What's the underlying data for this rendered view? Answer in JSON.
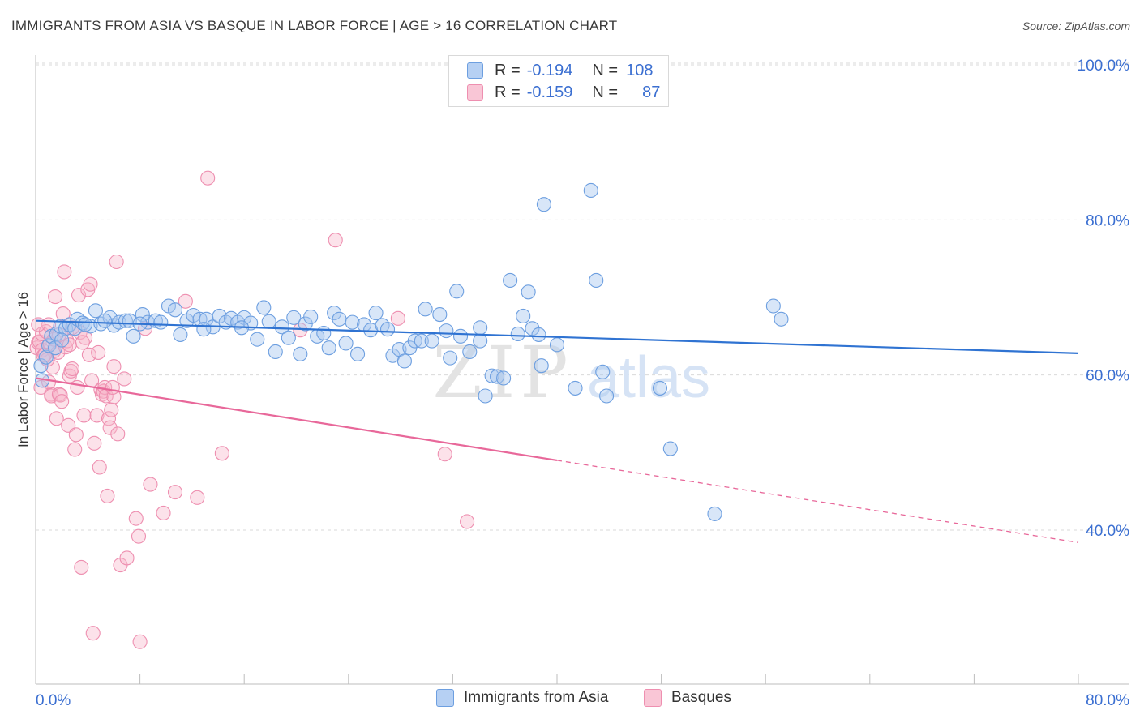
{
  "title": "IMMIGRANTS FROM ASIA VS BASQUE IN LABOR FORCE | AGE > 16 CORRELATION CHART",
  "source": "Source: ZipAtlas.com",
  "watermark": {
    "zip": "ZIP",
    "atlas": "atlas"
  },
  "legend": {
    "rows": [
      {
        "r_label": "R =",
        "r_value": "-0.194",
        "n_label": "N =",
        "n_value": "108"
      },
      {
        "r_label": "R =",
        "r_value": "-0.159",
        "n_label": "N =",
        "n_value": "87"
      }
    ]
  },
  "colors": {
    "asia_fill": "#a9c8f0",
    "asia_stroke": "#6d9fe0",
    "asia_line": "#2f73d2",
    "basque_fill": "#f7b7cb",
    "basque_stroke": "#ee8fb0",
    "basque_line": "#e8689a",
    "axis_label": "#3b6fd1",
    "grid": "#dadada"
  },
  "chart_data": {
    "type": "scatter",
    "title": "IMMIGRANTS FROM ASIA VS BASQUE IN LABOR FORCE | AGE > 16 CORRELATION CHART",
    "xlabel": "",
    "ylabel": "In Labor Force | Age > 16",
    "xlim": [
      0,
      80
    ],
    "ylim": [
      20,
      104
    ],
    "x_tick_labels": [
      "0.0%",
      "80.0%"
    ],
    "y_ticks": [
      40,
      60,
      80,
      100
    ],
    "y_tick_labels": [
      "40.0%",
      "60.0%",
      "80.0%",
      "100.0%"
    ],
    "grid": true,
    "legend_position": "top-center",
    "series": [
      {
        "name": "Immigrants from Asia",
        "r": -0.194,
        "n": 108,
        "trend": {
          "x": [
            0,
            80
          ],
          "y": [
            67.0,
            62.8
          ],
          "dashed_from": null
        },
        "points": [
          [
            0.4,
            61.2
          ],
          [
            0.5,
            59.3
          ],
          [
            0.8,
            62.3
          ],
          [
            1.0,
            63.8
          ],
          [
            1.2,
            65.0
          ],
          [
            1.6,
            65.3
          ],
          [
            1.9,
            66.3
          ],
          [
            2.3,
            66.0
          ],
          [
            2.6,
            66.5
          ],
          [
            3.0,
            66.0
          ],
          [
            3.2,
            67.2
          ],
          [
            3.6,
            66.7
          ],
          [
            4.2,
            66.3
          ],
          [
            4.6,
            68.3
          ],
          [
            5.0,
            66.6
          ],
          [
            5.7,
            67.4
          ],
          [
            6.0,
            66.4
          ],
          [
            6.4,
            66.8
          ],
          [
            6.9,
            67.0
          ],
          [
            7.2,
            67.0
          ],
          [
            7.5,
            65.0
          ],
          [
            8.2,
            67.8
          ],
          [
            8.6,
            66.8
          ],
          [
            9.2,
            67.0
          ],
          [
            9.6,
            66.8
          ],
          [
            10.2,
            68.9
          ],
          [
            10.7,
            68.4
          ],
          [
            11.1,
            65.2
          ],
          [
            11.6,
            67.0
          ],
          [
            12.1,
            67.7
          ],
          [
            12.6,
            67.2
          ],
          [
            13.1,
            67.2
          ],
          [
            13.6,
            66.2
          ],
          [
            14.1,
            67.6
          ],
          [
            14.6,
            66.8
          ],
          [
            15.0,
            67.3
          ],
          [
            15.5,
            66.8
          ],
          [
            16.0,
            67.4
          ],
          [
            16.5,
            66.7
          ],
          [
            17.0,
            64.6
          ],
          [
            17.5,
            68.7
          ],
          [
            17.9,
            66.9
          ],
          [
            18.4,
            63.0
          ],
          [
            18.9,
            66.2
          ],
          [
            19.4,
            64.8
          ],
          [
            19.8,
            67.4
          ],
          [
            20.3,
            62.7
          ],
          [
            20.7,
            66.6
          ],
          [
            21.1,
            67.5
          ],
          [
            21.6,
            65.0
          ],
          [
            22.1,
            65.4
          ],
          [
            22.5,
            63.5
          ],
          [
            22.9,
            68.0
          ],
          [
            23.3,
            67.2
          ],
          [
            23.8,
            64.1
          ],
          [
            24.3,
            66.8
          ],
          [
            24.7,
            62.7
          ],
          [
            25.2,
            66.5
          ],
          [
            25.7,
            65.8
          ],
          [
            26.1,
            68.0
          ],
          [
            26.6,
            66.4
          ],
          [
            27.0,
            65.9
          ],
          [
            27.4,
            62.5
          ],
          [
            27.9,
            63.3
          ],
          [
            28.3,
            61.8
          ],
          [
            28.7,
            63.5
          ],
          [
            29.1,
            64.4
          ],
          [
            29.6,
            64.4
          ],
          [
            29.9,
            68.5
          ],
          [
            30.4,
            64.4
          ],
          [
            31.0,
            67.8
          ],
          [
            31.5,
            65.7
          ],
          [
            31.8,
            62.2
          ],
          [
            32.3,
            70.8
          ],
          [
            32.6,
            65.0
          ],
          [
            33.3,
            63.0
          ],
          [
            34.1,
            64.4
          ],
          [
            34.1,
            66.1
          ],
          [
            34.5,
            57.3
          ],
          [
            35.0,
            59.9
          ],
          [
            35.4,
            59.8
          ],
          [
            35.9,
            59.6
          ],
          [
            36.4,
            72.2
          ],
          [
            37.0,
            65.3
          ],
          [
            37.4,
            67.6
          ],
          [
            37.8,
            70.7
          ],
          [
            38.1,
            66.0
          ],
          [
            38.6,
            65.2
          ],
          [
            38.8,
            61.2
          ],
          [
            39.0,
            82.0
          ],
          [
            40.0,
            63.9
          ],
          [
            41.4,
            58.3
          ],
          [
            42.6,
            83.8
          ],
          [
            43.0,
            72.2
          ],
          [
            43.5,
            60.4
          ],
          [
            43.8,
            57.3
          ],
          [
            47.9,
            58.3
          ],
          [
            48.7,
            50.5
          ],
          [
            52.1,
            42.1
          ],
          [
            56.6,
            68.9
          ],
          [
            57.2,
            67.2
          ],
          [
            1.5,
            63.5
          ],
          [
            2.0,
            64.5
          ],
          [
            3.8,
            66.5
          ],
          [
            5.3,
            67.0
          ],
          [
            8.0,
            66.6
          ],
          [
            12.9,
            65.9
          ],
          [
            15.8,
            66.1
          ]
        ]
      },
      {
        "name": "Basques",
        "r": -0.159,
        "n": 87,
        "trend": {
          "x": [
            0,
            80
          ],
          "y": [
            59.6,
            38.4
          ],
          "dashed_from": 40
        },
        "points": [
          [
            0.1,
            63.5
          ],
          [
            0.2,
            64.2
          ],
          [
            0.3,
            64.3
          ],
          [
            0.5,
            65.3
          ],
          [
            0.5,
            63.2
          ],
          [
            0.6,
            62.5
          ],
          [
            0.8,
            65.6
          ],
          [
            1.0,
            66.5
          ],
          [
            1.1,
            64.0
          ],
          [
            1.2,
            57.5
          ],
          [
            1.2,
            57.3
          ],
          [
            1.3,
            61.0
          ],
          [
            1.4,
            63.1
          ],
          [
            1.4,
            64.6
          ],
          [
            1.5,
            70.1
          ],
          [
            1.6,
            54.4
          ],
          [
            1.7,
            62.9
          ],
          [
            1.8,
            57.5
          ],
          [
            1.9,
            57.4
          ],
          [
            2.0,
            56.6
          ],
          [
            2.1,
            67.9
          ],
          [
            2.2,
            73.3
          ],
          [
            2.3,
            63.6
          ],
          [
            2.4,
            64.4
          ],
          [
            2.5,
            53.5
          ],
          [
            2.6,
            59.9
          ],
          [
            2.7,
            60.5
          ],
          [
            2.8,
            60.8
          ],
          [
            3.0,
            50.4
          ],
          [
            3.1,
            52.3
          ],
          [
            3.2,
            58.4
          ],
          [
            3.3,
            70.3
          ],
          [
            3.4,
            65.5
          ],
          [
            3.5,
            35.2
          ],
          [
            3.7,
            54.8
          ],
          [
            3.8,
            64.8
          ],
          [
            4.0,
            71.0
          ],
          [
            4.1,
            62.6
          ],
          [
            4.2,
            71.7
          ],
          [
            4.4,
            26.7
          ],
          [
            4.5,
            51.2
          ],
          [
            4.7,
            54.8
          ],
          [
            4.9,
            48.1
          ],
          [
            5.0,
            58.1
          ],
          [
            5.1,
            57.5
          ],
          [
            5.2,
            57.9
          ],
          [
            5.3,
            58.4
          ],
          [
            5.4,
            57.3
          ],
          [
            5.5,
            44.4
          ],
          [
            5.6,
            54.4
          ],
          [
            5.7,
            53.2
          ],
          [
            5.8,
            55.5
          ],
          [
            6.0,
            57.2
          ],
          [
            6.0,
            61.1
          ],
          [
            6.2,
            74.6
          ],
          [
            6.3,
            52.4
          ],
          [
            6.5,
            35.5
          ],
          [
            6.8,
            59.5
          ],
          [
            7.0,
            36.4
          ],
          [
            7.7,
            41.5
          ],
          [
            7.9,
            39.2
          ],
          [
            8.0,
            25.6
          ],
          [
            8.4,
            66.0
          ],
          [
            8.8,
            45.9
          ],
          [
            9.8,
            42.2
          ],
          [
            10.7,
            44.9
          ],
          [
            11.5,
            69.5
          ],
          [
            12.4,
            44.2
          ],
          [
            13.2,
            85.4
          ],
          [
            14.3,
            49.9
          ],
          [
            23.0,
            77.4
          ],
          [
            27.8,
            67.3
          ],
          [
            31.4,
            49.8
          ],
          [
            33.1,
            41.1
          ],
          [
            0.4,
            58.4
          ],
          [
            0.9,
            62.0
          ],
          [
            1.8,
            65.2
          ],
          [
            2.6,
            63.9
          ],
          [
            3.6,
            64.2
          ],
          [
            4.3,
            59.3
          ],
          [
            4.8,
            62.9
          ],
          [
            0.2,
            66.5
          ],
          [
            1.0,
            59.1
          ],
          [
            2.8,
            66.1
          ],
          [
            5.9,
            58.4
          ],
          [
            20.3,
            65.8
          ],
          [
            0.7,
            62.6
          ]
        ]
      }
    ]
  },
  "bottom_legend": [
    "Immigrants from Asia",
    "Basques"
  ]
}
